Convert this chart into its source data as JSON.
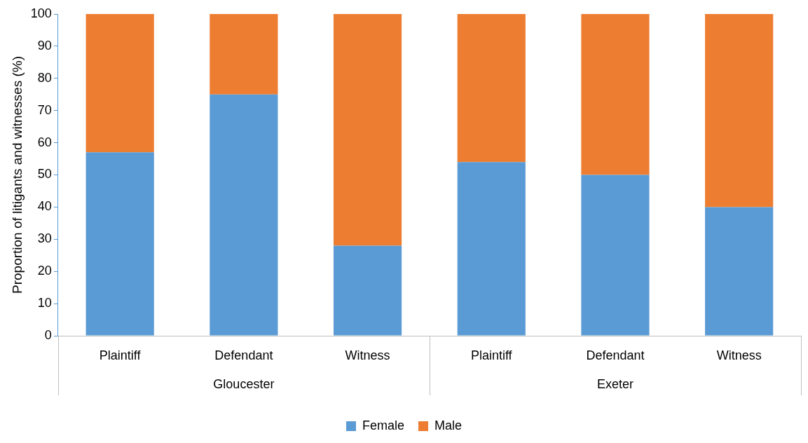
{
  "chart_data": {
    "type": "bar",
    "stacked": true,
    "ylabel": "Proportion of litigants and witnesses (%)",
    "categories": [
      "Plaintiff",
      "Defendant",
      "Witness",
      "Plaintiff",
      "Defendant",
      "Witness"
    ],
    "annotations": [
      "Gloucester",
      "Exeter"
    ],
    "series": [
      {
        "name": "Female",
        "color": "#5b9bd5",
        "values": [
          57,
          75,
          28,
          54,
          50,
          40
        ]
      },
      {
        "name": "Male",
        "color": "#ed7d31",
        "values": [
          43,
          25,
          72,
          46,
          50,
          60
        ]
      }
    ],
    "ylim": [
      0,
      100
    ],
    "yticks": [
      0,
      10,
      20,
      30,
      40,
      50,
      60,
      70,
      80,
      90,
      100
    ],
    "grid": false,
    "legend": "bottom"
  }
}
